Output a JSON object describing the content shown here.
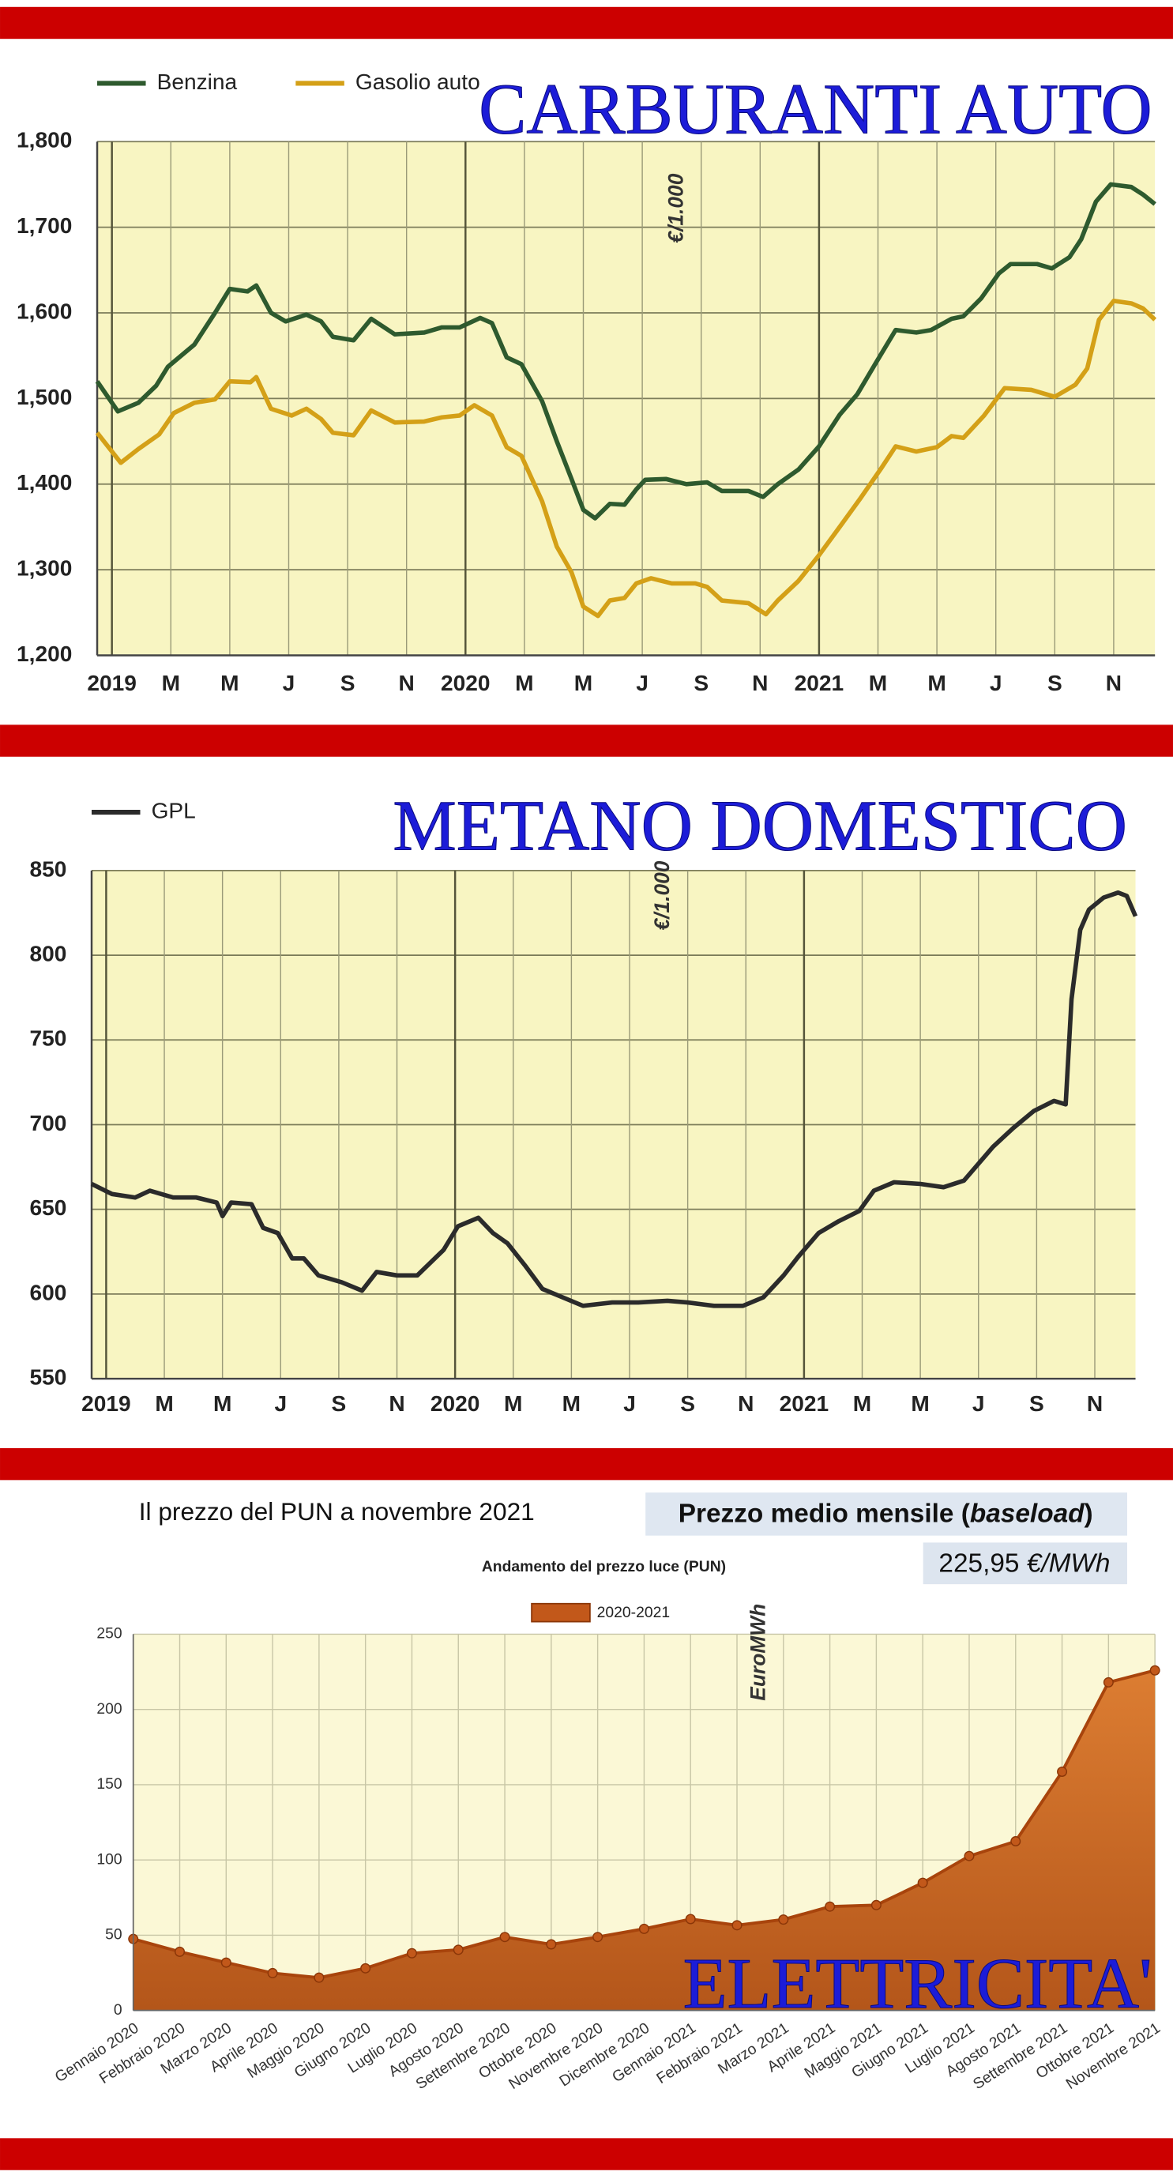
{
  "chart_data": [
    {
      "type": "line",
      "banner": "CARBURANTI AUTO",
      "unit_label": "€/1.000",
      "xlim": [
        -0.5,
        35.4
      ],
      "ylim": [
        1200,
        1800
      ],
      "xticks": [
        {
          "value": 0,
          "label": "2019"
        },
        {
          "value": 2,
          "label": "M"
        },
        {
          "value": 4,
          "label": "M"
        },
        {
          "value": 6,
          "label": "J"
        },
        {
          "value": 8,
          "label": "S"
        },
        {
          "value": 10,
          "label": "N"
        },
        {
          "value": 12,
          "label": "2020"
        },
        {
          "value": 14,
          "label": "M"
        },
        {
          "value": 16,
          "label": "M"
        },
        {
          "value": 18,
          "label": "J"
        },
        {
          "value": 20,
          "label": "S"
        },
        {
          "value": 22,
          "label": "N"
        },
        {
          "value": 24,
          "label": "2021"
        },
        {
          "value": 26,
          "label": "M"
        },
        {
          "value": 28,
          "label": "M"
        },
        {
          "value": 30,
          "label": "J"
        },
        {
          "value": 32,
          "label": "S"
        },
        {
          "value": 34,
          "label": "N"
        }
      ],
      "yticks": [
        {
          "value": 1200,
          "label": "1,200"
        },
        {
          "value": 1300,
          "label": "1,300"
        },
        {
          "value": 1400,
          "label": "1,400"
        },
        {
          "value": 1500,
          "label": "1,500"
        },
        {
          "value": 1600,
          "label": "1,600"
        },
        {
          "value": 1700,
          "label": "1,700"
        },
        {
          "value": 1800,
          "label": "1,800"
        }
      ],
      "grid": true,
      "series": [
        {
          "name": "Benzina",
          "color": "#2e5a2e",
          "x": [
            -0.5,
            0.2,
            0.9,
            1.5,
            1.9,
            2.8,
            3.5,
            4.0,
            4.6,
            4.9,
            5.4,
            5.9,
            6.6,
            7.1,
            7.5,
            8.2,
            8.8,
            9.6,
            10.6,
            11.2,
            11.8,
            12.5,
            12.9,
            13.4,
            13.9,
            14.6,
            15.1,
            15.6,
            16.0,
            16.4,
            16.9,
            17.4,
            17.8,
            18.1,
            18.8,
            19.5,
            20.2,
            20.7,
            21.6,
            22.1,
            22.6,
            23.3,
            24.0,
            24.7,
            25.3,
            25.9,
            26.6,
            27.3,
            27.8,
            28.5,
            28.9,
            29.5,
            30.1,
            30.5,
            31.0,
            31.4,
            31.9,
            32.5,
            32.9,
            33.4,
            33.9,
            34.6,
            35.0,
            35.4
          ],
          "values": [
            1520,
            1485,
            1495,
            1515,
            1537,
            1563,
            1600,
            1628,
            1625,
            1632,
            1600,
            1590,
            1598,
            1590,
            1572,
            1568,
            1593,
            1575,
            1577,
            1583,
            1583,
            1594,
            1588,
            1548,
            1540,
            1497,
            1450,
            1406,
            1370,
            1360,
            1377,
            1376,
            1394,
            1405,
            1406,
            1400,
            1402,
            1392,
            1392,
            1385,
            1400,
            1417,
            1444,
            1481,
            1505,
            1540,
            1580,
            1577,
            1580,
            1593,
            1596,
            1617,
            1646,
            1657,
            1657,
            1657,
            1652,
            1665,
            1686,
            1730,
            1750,
            1747,
            1738,
            1727
          ]
        },
        {
          "name": "Gasolio auto",
          "color": "#d4a017",
          "x": [
            -0.5,
            0.3,
            0.9,
            1.6,
            2.1,
            2.8,
            3.5,
            4.0,
            4.7,
            4.9,
            5.4,
            6.1,
            6.6,
            7.1,
            7.5,
            8.2,
            8.8,
            9.6,
            10.6,
            11.2,
            11.8,
            12.3,
            12.9,
            13.4,
            13.9,
            14.6,
            15.1,
            15.6,
            16.0,
            16.5,
            16.9,
            17.4,
            17.8,
            18.3,
            19.0,
            19.8,
            20.2,
            20.7,
            21.6,
            22.2,
            22.6,
            23.3,
            24.0,
            24.7,
            25.4,
            26.1,
            26.6,
            27.3,
            28.0,
            28.5,
            28.9,
            29.6,
            30.3,
            31.2,
            32.0,
            32.7,
            33.1,
            33.5,
            34.0,
            34.6,
            35.0,
            35.4
          ],
          "values": [
            1460,
            1425,
            1441,
            1458,
            1483,
            1495,
            1499,
            1520,
            1519,
            1525,
            1488,
            1480,
            1488,
            1476,
            1460,
            1457,
            1486,
            1472,
            1473,
            1478,
            1480,
            1492,
            1480,
            1443,
            1433,
            1380,
            1327,
            1297,
            1257,
            1246,
            1264,
            1267,
            1284,
            1290,
            1284,
            1284,
            1280,
            1264,
            1261,
            1248,
            1264,
            1287,
            1317,
            1350,
            1383,
            1418,
            1444,
            1438,
            1443,
            1456,
            1454,
            1480,
            1512,
            1510,
            1502,
            1516,
            1535,
            1592,
            1614,
            1611,
            1605,
            1592
          ]
        }
      ]
    },
    {
      "type": "line",
      "banner": "METANO DOMESTICO",
      "unit_label": "€/1.000",
      "xlim": [
        -0.5,
        35.4
      ],
      "ylim": [
        550,
        850
      ],
      "xticks": [
        {
          "value": 0,
          "label": "2019"
        },
        {
          "value": 2,
          "label": "M"
        },
        {
          "value": 4,
          "label": "M"
        },
        {
          "value": 6,
          "label": "J"
        },
        {
          "value": 8,
          "label": "S"
        },
        {
          "value": 10,
          "label": "N"
        },
        {
          "value": 12,
          "label": "2020"
        },
        {
          "value": 14,
          "label": "M"
        },
        {
          "value": 16,
          "label": "M"
        },
        {
          "value": 18,
          "label": "J"
        },
        {
          "value": 20,
          "label": "S"
        },
        {
          "value": 22,
          "label": "N"
        },
        {
          "value": 24,
          "label": "2021"
        },
        {
          "value": 26,
          "label": "M"
        },
        {
          "value": 28,
          "label": "M"
        },
        {
          "value": 30,
          "label": "J"
        },
        {
          "value": 32,
          "label": "S"
        },
        {
          "value": 34,
          "label": "N"
        }
      ],
      "yticks": [
        550,
        600,
        650,
        700,
        750,
        800,
        850
      ],
      "grid": true,
      "series": [
        {
          "name": "GPL",
          "color": "#2b2b2b",
          "x": [
            -0.5,
            0.2,
            1.0,
            1.5,
            2.3,
            3.1,
            3.8,
            4.0,
            4.3,
            5.0,
            5.4,
            5.9,
            6.4,
            6.8,
            7.3,
            8.1,
            8.8,
            9.3,
            10.0,
            10.7,
            11.6,
            12.1,
            12.8,
            13.3,
            13.8,
            14.4,
            15.0,
            15.7,
            16.4,
            17.4,
            18.3,
            19.3,
            20.0,
            20.9,
            21.9,
            22.6,
            23.3,
            23.8,
            24.5,
            25.2,
            25.9,
            26.4,
            27.1,
            28.0,
            28.8,
            29.5,
            30.5,
            31.2,
            31.9,
            32.6,
            33.0,
            33.2,
            33.5,
            33.8,
            34.3,
            34.8,
            35.1,
            35.4
          ],
          "values": [
            665,
            659,
            657,
            661,
            657,
            657,
            654,
            646,
            654,
            653,
            639,
            636,
            621,
            621,
            611,
            607,
            602,
            613,
            611,
            611,
            626,
            640,
            645,
            636,
            630,
            617,
            603,
            598,
            593,
            595,
            595,
            596,
            595,
            593,
            593,
            598,
            611,
            622,
            636,
            643,
            649,
            661,
            666,
            665,
            663,
            667,
            687,
            698,
            708,
            714,
            712,
            774,
            815,
            827,
            834,
            837,
            835,
            823
          ]
        }
      ]
    },
    {
      "type": "area",
      "heading": "Il prezzo del PUN a novembre 2021",
      "summary_label": [
        "Prezzo medio mensile (",
        "baseload",
        ")"
      ],
      "summary_value": "225,95",
      "summary_unit": "€/MWh",
      "title": "Andamento del prezzo luce (PUN)",
      "unit_label": "EuroMWh",
      "banner": "ELETTRICITA'",
      "ylim": [
        0,
        250
      ],
      "yticks": [
        0,
        50,
        100,
        150,
        200,
        250
      ],
      "grid": true,
      "categories": [
        "Gennaio 2020",
        "Febbraio 2020",
        "Marzo 2020",
        "Aprile 2020",
        "Maggio 2020",
        "Giugno 2020",
        "Luglio 2020",
        "Agosto 2020",
        "Settembre 2020",
        "Ottobre 2020",
        "Novembre 2020",
        "Dicembre 2020",
        "Gennaio 2021",
        "Febbraio 2021",
        "Marzo 2021",
        "Aprile 2021",
        "Maggio 2021",
        "Giugno 2021",
        "Luglio 2021",
        "Agosto 2021",
        "Settembre 2021",
        "Ottobre 2021",
        "Novembre 2021"
      ],
      "series": [
        {
          "name": "2020-2021",
          "color": "#c2581a",
          "values": [
            47.5,
            39,
            31.8,
            24.8,
            21.8,
            28,
            38,
            40.3,
            48.8,
            43.9,
            48.8,
            54.2,
            60.7,
            56.6,
            60.4,
            69,
            70,
            84.8,
            102.6,
            112.4,
            158.6,
            218,
            225.95
          ]
        }
      ]
    }
  ]
}
